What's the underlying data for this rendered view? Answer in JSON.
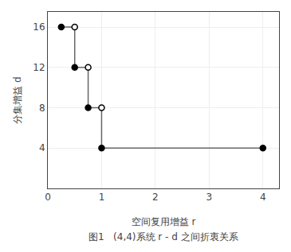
{
  "chart_data": {
    "type": "step",
    "xlabel": "空间复用增益 r",
    "ylabel": "分集增益 d",
    "caption": "图1   (4,4)系统 r - d 之间折衷关系",
    "xlim": [
      0,
      4.3
    ],
    "ylim": [
      0,
      17.5
    ],
    "xticks": [
      0,
      1,
      2,
      3,
      4
    ],
    "yticks": [
      4,
      8,
      12,
      16
    ],
    "grid": true,
    "series": [
      {
        "type": "line",
        "line_style": "step",
        "color": "#666666",
        "x": [
          0.25,
          0.5,
          0.75,
          1.0,
          4.0
        ],
        "values": [
          16,
          12,
          8,
          4,
          4
        ]
      },
      {
        "type": "scatter",
        "marker": "filled",
        "color": "#000000",
        "x": [
          0.25,
          0.5,
          0.75,
          1.0,
          4.0
        ],
        "values": [
          16,
          12,
          8,
          4,
          4
        ]
      },
      {
        "type": "scatter",
        "marker": "open",
        "color": "#000000",
        "x": [
          0.5,
          0.75,
          1.0
        ],
        "values": [
          16,
          12,
          8
        ]
      }
    ]
  }
}
